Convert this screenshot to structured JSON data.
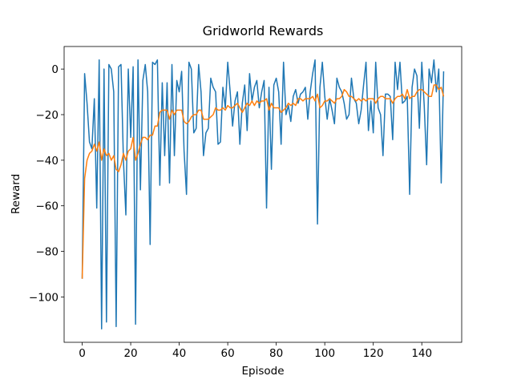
{
  "chart_data": {
    "type": "line",
    "title": "Gridworld Rewards",
    "x_label": "Episode",
    "y_label": "Reward",
    "x": [
      0,
      1,
      2,
      3,
      4,
      5,
      6,
      7,
      8,
      9,
      10,
      11,
      12,
      13,
      14,
      15,
      16,
      17,
      18,
      19,
      20,
      21,
      22,
      23,
      24,
      25,
      26,
      27,
      28,
      29,
      30,
      31,
      32,
      33,
      34,
      35,
      36,
      37,
      38,
      39,
      40,
      41,
      42,
      43,
      44,
      45,
      46,
      47,
      48,
      49,
      50,
      51,
      52,
      53,
      54,
      55,
      56,
      57,
      58,
      59,
      60,
      61,
      62,
      63,
      64,
      65,
      66,
      67,
      68,
      69,
      70,
      71,
      72,
      73,
      74,
      75,
      76,
      77,
      78,
      79,
      80,
      81,
      82,
      83,
      84,
      85,
      86,
      87,
      88,
      89,
      90,
      91,
      92,
      93,
      94,
      95,
      96,
      97,
      98,
      99,
      100,
      101,
      102,
      103,
      104,
      105,
      106,
      107,
      108,
      109,
      110,
      111,
      112,
      113,
      114,
      115,
      116,
      117,
      118,
      119,
      120,
      121,
      122,
      123,
      124,
      125,
      126,
      127,
      128,
      129,
      130,
      131,
      132,
      133,
      134,
      135,
      136,
      137,
      138,
      139,
      140,
      141,
      142,
      143,
      144,
      145,
      146,
      147,
      148,
      149
    ],
    "series": [
      {
        "color": "#1f77b4",
        "values": [
          -92,
          -2,
          -15,
          -32,
          -35,
          -13,
          -61,
          4,
          -114,
          0,
          -111,
          2,
          0,
          -10,
          -113,
          1,
          2,
          -40,
          -64,
          0,
          -30,
          1,
          -112,
          4,
          -53,
          -5,
          2,
          -10,
          -77,
          3,
          2,
          4,
          -51,
          -6,
          -38,
          -6,
          -50,
          2,
          -38,
          -5,
          -10,
          -1,
          -36,
          -55,
          3,
          0,
          -28,
          -26,
          2,
          -10,
          -38,
          -28,
          -26,
          -4,
          -8,
          -10,
          -33,
          -32,
          -8,
          -17,
          3,
          -10,
          -25,
          -14,
          -10,
          -33,
          -15,
          -7,
          -27,
          -2,
          -14,
          -8,
          -5,
          -17,
          -10,
          -5,
          -61,
          -8,
          -44,
          -7,
          -4,
          -10,
          -33,
          3,
          -20,
          -16,
          -23,
          -12,
          -9,
          -15,
          -11,
          -10,
          -8,
          -22,
          -10,
          -2,
          4,
          -68,
          -8,
          3,
          -12,
          -22,
          -13,
          -18,
          -24,
          -4,
          -8,
          -10,
          -15,
          -22,
          -20,
          -4,
          -13,
          -15,
          -24,
          -18,
          -7,
          3,
          -27,
          -14,
          -28,
          3,
          -17,
          -20,
          -38,
          -11,
          -11,
          -12,
          -31,
          3,
          -9,
          3,
          -15,
          -14,
          -12,
          -55,
          -8,
          0,
          -3,
          -26,
          3,
          -16,
          -42,
          0,
          -6,
          4,
          -10,
          0,
          -50,
          -1
        ]
      },
      {
        "color": "#ff7f0e",
        "values": [
          -92,
          -48,
          -40,
          -37,
          -36,
          -33,
          -36,
          -32,
          -40,
          -35,
          -38,
          -37,
          -40,
          -38,
          -44,
          -45,
          -42,
          -37,
          -40,
          -36,
          -35,
          -30,
          -40,
          -37,
          -33,
          -30,
          -30,
          -31,
          -29,
          -29,
          -25,
          -25,
          -19,
          -18,
          -18,
          -18,
          -22,
          -18,
          -20,
          -18,
          -18,
          -18,
          -23,
          -24,
          -23,
          -21,
          -20,
          -20,
          -18,
          -18,
          -22,
          -22,
          -22,
          -21,
          -20,
          -17,
          -18,
          -18,
          -17,
          -18,
          -16,
          -17,
          -17,
          -16,
          -15,
          -17,
          -19,
          -17,
          -15,
          -16,
          -14,
          -16,
          -14,
          -15,
          -14,
          -14,
          -13,
          -18,
          -15,
          -17,
          -17,
          -17,
          -19,
          -18,
          -17,
          -15,
          -16,
          -15,
          -16,
          -13,
          -13,
          -14,
          -13,
          -13,
          -13,
          -12,
          -14,
          -11,
          -17,
          -16,
          -14,
          -14,
          -13,
          -14,
          -15,
          -13,
          -13,
          -12,
          -9,
          -10,
          -12,
          -12,
          -13,
          -14,
          -13,
          -14,
          -13,
          -14,
          -13,
          -13,
          -13,
          -15,
          -13,
          -12,
          -12,
          -13,
          -13,
          -13,
          -15,
          -13,
          -12,
          -12,
          -11,
          -13,
          -9,
          -13,
          -12,
          -12,
          -10,
          -9,
          -9,
          -10,
          -11,
          -12,
          -12,
          -7,
          -7,
          -9,
          -8,
          -12
        ]
      }
    ],
    "xlim": [
      -7.45,
      156.45
    ],
    "ylim": [
      -119.9,
      9.9
    ],
    "xticks": [
      0,
      20,
      40,
      60,
      80,
      100,
      120,
      140
    ],
    "yticks": [
      {
        "value": -100,
        "label": "−100"
      },
      {
        "value": -80,
        "label": "−80"
      },
      {
        "value": -60,
        "label": "−60"
      },
      {
        "value": -40,
        "label": "−40"
      },
      {
        "value": -20,
        "label": "−20"
      },
      0
    ],
    "grid": false
  }
}
